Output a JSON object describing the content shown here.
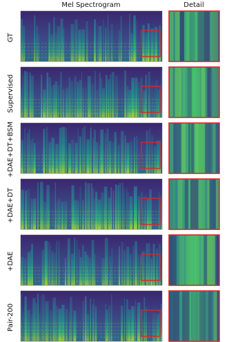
{
  "header": {
    "spectrogram": "Mel Spectrogram",
    "detail": "Detail"
  },
  "rows": [
    {
      "label": "GT"
    },
    {
      "label": "Supervised"
    },
    {
      "label": "+DAE+DT+BSM"
    },
    {
      "label": "+DAE+DT"
    },
    {
      "label": "+DAE"
    },
    {
      "label": "Pair-200"
    }
  ]
}
